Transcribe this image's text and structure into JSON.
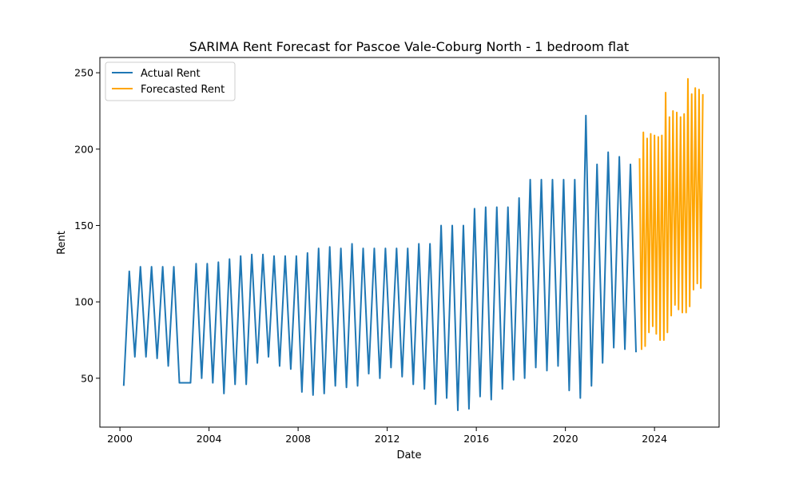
{
  "chart_data": {
    "type": "line",
    "title": "SARIMA Rent Forecast for Pascoe Vale-Coburg North - 1 bedroom flat",
    "xlabel": "Date",
    "ylabel": "Rent",
    "x_ticks": [
      "2000",
      "2004",
      "2008",
      "2012",
      "2016",
      "2020",
      "2024"
    ],
    "y_ticks": [
      "50",
      "100",
      "150",
      "200",
      "250"
    ],
    "xlim": [
      1999.1,
      2026.9
    ],
    "ylim": [
      18,
      260
    ],
    "grid": false,
    "legend_position": "top-left",
    "series": [
      {
        "name": "Actual Rent",
        "color": "#1f77b4",
        "x": [
          2000.17,
          2000.42,
          2000.67,
          2000.92,
          2001.17,
          2001.42,
          2001.67,
          2001.92,
          2002.17,
          2002.42,
          2002.67,
          2002.92,
          2003.17,
          2003.42,
          2003.67,
          2003.92,
          2004.17,
          2004.42,
          2004.67,
          2004.92,
          2005.17,
          2005.42,
          2005.67,
          2005.92,
          2006.17,
          2006.42,
          2006.67,
          2006.92,
          2007.17,
          2007.42,
          2007.67,
          2007.92,
          2008.17,
          2008.42,
          2008.67,
          2008.92,
          2009.17,
          2009.42,
          2009.67,
          2009.92,
          2010.17,
          2010.42,
          2010.67,
          2010.92,
          2011.17,
          2011.42,
          2011.67,
          2011.92,
          2012.17,
          2012.42,
          2012.67,
          2012.92,
          2013.17,
          2013.42,
          2013.67,
          2013.92,
          2014.17,
          2014.42,
          2014.67,
          2014.92,
          2015.17,
          2015.42,
          2015.67,
          2015.92,
          2016.17,
          2016.42,
          2016.67,
          2016.92,
          2017.17,
          2017.42,
          2017.67,
          2017.92,
          2018.17,
          2018.42,
          2018.67,
          2018.92,
          2019.17,
          2019.42,
          2019.67,
          2019.92,
          2020.17,
          2020.42,
          2020.67,
          2020.92,
          2021.17,
          2021.42,
          2021.67,
          2021.92,
          2022.17,
          2022.42,
          2022.67,
          2022.92,
          2023.17
        ],
        "y": [
          45,
          120,
          64,
          123,
          64,
          123,
          63,
          123,
          58,
          123,
          47,
          47,
          47,
          125,
          50,
          125,
          47,
          126,
          40,
          128,
          46,
          130,
          46,
          131,
          60,
          131,
          64,
          130,
          58,
          130,
          56,
          130,
          41,
          132,
          39,
          135,
          40,
          136,
          45,
          135,
          44,
          138,
          45,
          135,
          53,
          135,
          50,
          135,
          57,
          135,
          51,
          135,
          46,
          138,
          43,
          138,
          33,
          150,
          37,
          150,
          29,
          150,
          30,
          161,
          38,
          162,
          36,
          162,
          43,
          162,
          49,
          168,
          50,
          180,
          57,
          180,
          55,
          180,
          58,
          180,
          42,
          180,
          37,
          222,
          45,
          190,
          60,
          198,
          70,
          195,
          69,
          190,
          67
        ]
      },
      {
        "name": "Forecasted Rent",
        "color": "#ffa500",
        "x": [
          2023.33,
          2023.42,
          2023.5,
          2023.58,
          2023.67,
          2023.75,
          2023.83,
          2023.92,
          2024.0,
          2024.08,
          2024.17,
          2024.25,
          2024.33,
          2024.42,
          2024.5,
          2024.58,
          2024.67,
          2024.75,
          2024.83,
          2024.92,
          2025.0,
          2025.08,
          2025.17,
          2025.25,
          2025.33,
          2025.42,
          2025.5,
          2025.58,
          2025.67,
          2025.75,
          2025.83,
          2025.92,
          2026.0,
          2026.08,
          2026.17
        ],
        "y": [
          194,
          69,
          211,
          71,
          207,
          80,
          210,
          84,
          209,
          79,
          208,
          75,
          209,
          75,
          237,
          80,
          221,
          91,
          225,
          98,
          224,
          95,
          221,
          93,
          223,
          93,
          246,
          97,
          236,
          108,
          240,
          112,
          239,
          109,
          236
        ]
      }
    ]
  }
}
